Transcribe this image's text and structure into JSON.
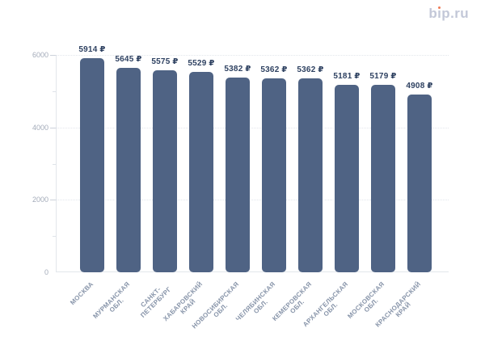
{
  "logo": {
    "prefix": "b",
    "i_base": "ı",
    "suffix": "p.ru",
    "text_color": "#c3c8d8",
    "dot_color": "#ef7a56"
  },
  "chart_data": {
    "type": "bar",
    "title": "",
    "categories": [
      "МОСКВА",
      "МУРМАНСКАЯ ОБЛ.",
      "САНКТ-ПЕТЕРБУРГ",
      "ХАБАРОВСКИЙ КРАЙ",
      "НОВОСИБИРСКАЯ ОБЛ.",
      "ЧЕЛЯБИНСКАЯ ОБЛ.",
      "КЕМЕРОВСКАЯ ОБЛ.",
      "АРХАНГЕЛЬСКАЯ ОБЛ.",
      "МОСКОВСКАЯ ОБЛ.",
      "КРАСНОДАРСКИЙ КРАЙ"
    ],
    "category_label_lines": [
      [
        "МОСКВА"
      ],
      [
        "МУРМАНСКАЯ",
        "ОБЛ."
      ],
      [
        "САНКТ-",
        "ПЕТЕРБУРГ"
      ],
      [
        "ХАБАРОВСКИЙ",
        "КРАЙ"
      ],
      [
        "НОВОСИБИРСКАЯ",
        "ОБЛ."
      ],
      [
        "ЧЕЛЯБИНСКАЯ",
        "ОБЛ."
      ],
      [
        "КЕМЕРОВСКАЯ",
        "ОБЛ."
      ],
      [
        "АРХАНГЕЛЬСКАЯ",
        "ОБЛ."
      ],
      [
        "МОСКОВСКАЯ",
        "ОБЛ."
      ],
      [
        "КРАСНОДАРСКИЙ",
        "КРАЙ"
      ]
    ],
    "values": [
      5914,
      5645,
      5575,
      5529,
      5382,
      5362,
      5362,
      5181,
      5179,
      4908
    ],
    "value_label_suffix": " ₽",
    "xlabel": "",
    "ylabel": "",
    "ylim": [
      0,
      6000
    ],
    "ytick_values": [
      0,
      2000,
      4000,
      6000
    ],
    "ytick_labels": [
      "0",
      "2000",
      "4000",
      "6000"
    ],
    "minor_ytick_values": [
      1000,
      3000,
      5000
    ],
    "grid": "horizontal dotted lines at major ticks",
    "legend": "none",
    "bar_color": "#4f6384",
    "value_label_color": "#2e4161",
    "axis_label_color": "#a3abb9",
    "category_label_color": "#8794a9"
  }
}
